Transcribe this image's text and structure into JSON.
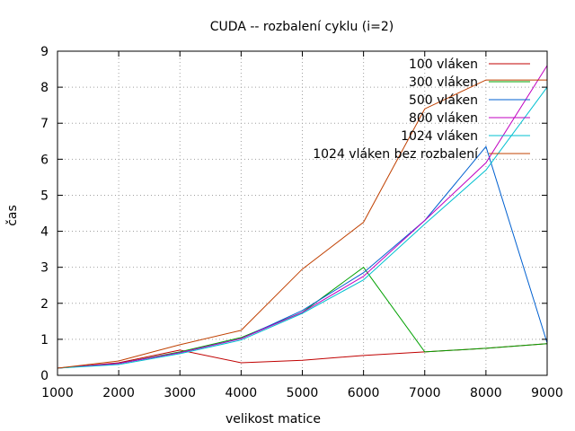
{
  "chart_data": {
    "type": "line",
    "title": "CUDA -- rozbalení cyklu (i=2)",
    "xlabel": "velikost matice",
    "ylabel": "čas",
    "xlim": [
      1000,
      9000
    ],
    "ylim": [
      0,
      9
    ],
    "x_ticks": [
      1000,
      2000,
      3000,
      4000,
      5000,
      6000,
      7000,
      8000,
      9000
    ],
    "y_ticks": [
      0,
      1,
      2,
      3,
      4,
      5,
      6,
      7,
      8,
      9
    ],
    "grid": true,
    "legend_position": "top-right",
    "x": [
      1000,
      2000,
      3000,
      4000,
      5000,
      6000,
      7000,
      8000,
      9000
    ],
    "series": [
      {
        "name": "100 vláken",
        "color": "#c00000",
        "values": [
          0.2,
          0.35,
          0.7,
          0.35,
          0.42,
          0.55,
          0.65,
          0.75,
          0.88
        ]
      },
      {
        "name": "300 vláken",
        "color": "#00a000",
        "values": [
          0.2,
          0.33,
          0.65,
          1.05,
          1.75,
          3.0,
          0.65,
          0.75,
          0.88
        ]
      },
      {
        "name": "500 vláken",
        "color": "#0060d0",
        "values": [
          0.2,
          0.33,
          0.63,
          1.02,
          1.8,
          2.85,
          4.3,
          6.35,
          0.9
        ]
      },
      {
        "name": "800 vláken",
        "color": "#c000c0",
        "values": [
          0.2,
          0.33,
          0.63,
          1.02,
          1.75,
          2.75,
          4.3,
          5.9,
          8.6
        ]
      },
      {
        "name": "1024 vláken",
        "color": "#00c0d0",
        "values": [
          0.2,
          0.3,
          0.6,
          0.98,
          1.72,
          2.65,
          4.2,
          5.7,
          8.0
        ]
      },
      {
        "name": "1024 vláken bez rozbalení",
        "color": "#c04000",
        "values": [
          0.2,
          0.4,
          0.85,
          1.25,
          2.95,
          4.25,
          7.4,
          8.2,
          8.2
        ]
      }
    ]
  }
}
